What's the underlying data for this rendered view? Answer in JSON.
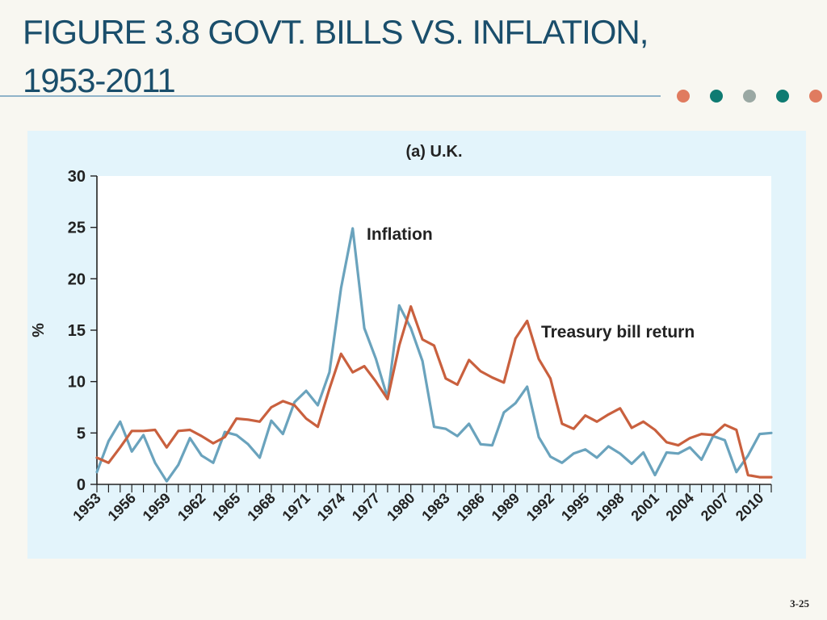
{
  "slide": {
    "title_line1": "FIGURE 3.8 GOVT. BILLS VS. INFLATION,",
    "title_line2": "1953-2011",
    "page_number": "3-25"
  },
  "colors": {
    "title": "#1a4e6b",
    "rule": "#8fb3c9",
    "dots": [
      "#e07b5f",
      "#0f7b72",
      "#9aa8a3",
      "#0f7b72",
      "#e07b5f"
    ],
    "panel_bg": "#e3f4fb",
    "plot_bg": "#ffffff",
    "inflation": "#6aa3bd",
    "tbill": "#c9603e"
  },
  "chart_data": {
    "type": "line",
    "title": "(a) U.K.",
    "ylabel": "%",
    "xlabel": "",
    "ylim": [
      0,
      30
    ],
    "xlim": [
      1953,
      2011
    ],
    "yticks": [
      0,
      5,
      10,
      15,
      20,
      25,
      30
    ],
    "xticks": [
      "1953",
      "1956",
      "1959",
      "1962",
      "1965",
      "1968",
      "1971",
      "1974",
      "1977",
      "1980",
      "1983",
      "1986",
      "1989",
      "1992",
      "1995",
      "1998",
      "2001",
      "2004",
      "2007",
      "2010"
    ],
    "grid": false,
    "legend": "inline labels",
    "x": [
      1953,
      1954,
      1955,
      1956,
      1957,
      1958,
      1959,
      1960,
      1961,
      1962,
      1963,
      1964,
      1965,
      1966,
      1967,
      1968,
      1969,
      1970,
      1971,
      1972,
      1973,
      1974,
      1975,
      1976,
      1977,
      1978,
      1979,
      1980,
      1981,
      1982,
      1983,
      1984,
      1985,
      1986,
      1987,
      1988,
      1989,
      1990,
      1991,
      1992,
      1993,
      1994,
      1995,
      1996,
      1997,
      1998,
      1999,
      2000,
      2001,
      2002,
      2003,
      2004,
      2005,
      2006,
      2007,
      2008,
      2009,
      2010,
      2011
    ],
    "series": [
      {
        "name": "Inflation",
        "values": [
          1.2,
          4.2,
          6.1,
          3.2,
          4.8,
          2.1,
          0.3,
          1.9,
          4.5,
          2.8,
          2.1,
          5.1,
          4.8,
          3.9,
          2.6,
          6.2,
          4.9,
          8.0,
          9.1,
          7.7,
          10.9,
          19.1,
          24.9,
          15.2,
          12.2,
          8.4,
          17.4,
          15.2,
          12.0,
          5.6,
          5.4,
          4.7,
          5.9,
          3.9,
          3.8,
          7.0,
          7.9,
          9.5,
          4.6,
          2.7,
          2.1,
          3.0,
          3.4,
          2.6,
          3.7,
          3.0,
          2.0,
          3.1,
          0.9,
          3.1,
          3.0,
          3.6,
          2.4,
          4.7,
          4.3,
          1.2,
          2.8,
          4.9,
          5.0
        ]
      },
      {
        "name": "Treasury bill return",
        "values": [
          2.6,
          2.1,
          3.6,
          5.2,
          5.2,
          5.3,
          3.6,
          5.2,
          5.3,
          4.7,
          4.0,
          4.6,
          6.4,
          6.3,
          6.1,
          7.5,
          8.1,
          7.7,
          6.4,
          5.6,
          9.3,
          12.7,
          10.9,
          11.5,
          10.0,
          8.3,
          13.5,
          17.3,
          14.1,
          13.5,
          10.3,
          9.7,
          12.1,
          11.0,
          10.4,
          9.9,
          14.2,
          15.9,
          12.2,
          10.3,
          5.9,
          5.4,
          6.7,
          6.1,
          6.8,
          7.4,
          5.5,
          6.1,
          5.3,
          4.1,
          3.8,
          4.5,
          4.9,
          4.8,
          5.8,
          5.3,
          0.9,
          0.7,
          0.7
        ]
      }
    ],
    "annotations": [
      {
        "text": "Inflation"
      },
      {
        "text": "Treasury bill return"
      }
    ]
  }
}
